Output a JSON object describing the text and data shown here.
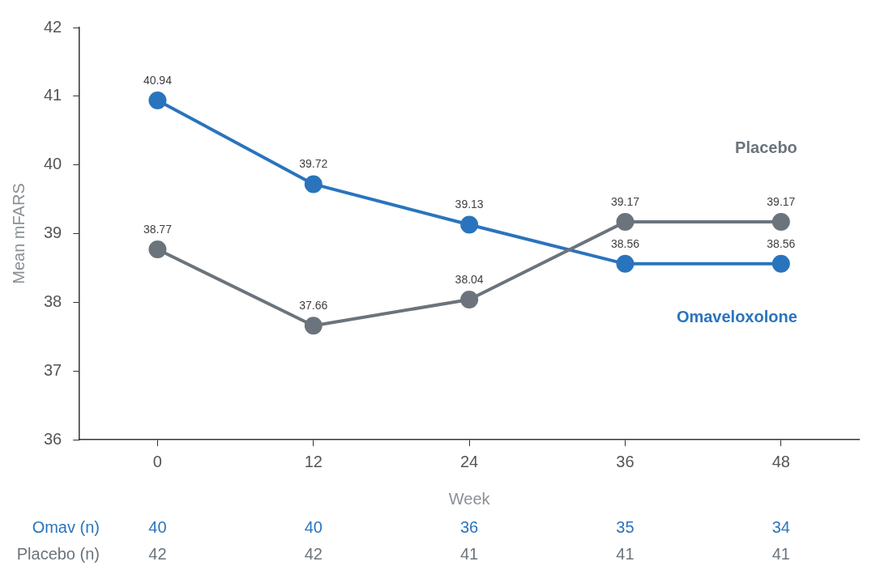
{
  "chart_data": {
    "type": "line",
    "xlabel": "Week",
    "ylabel": "Mean mFARS",
    "categories": [
      "0",
      "12",
      "24",
      "36",
      "48"
    ],
    "series": [
      {
        "name": "Placebo",
        "color": "#6b747c",
        "values": [
          38.77,
          37.66,
          38.04,
          39.17,
          39.17
        ]
      },
      {
        "name": "Omaveloxolone",
        "color": "#2a74bd",
        "values": [
          40.94,
          39.72,
          39.13,
          38.56,
          38.56
        ]
      }
    ],
    "ylim": [
      36,
      42
    ],
    "yticks": [
      36,
      37,
      38,
      39,
      40,
      41,
      42
    ],
    "grid": false,
    "legend": false,
    "marker": "circle",
    "line_style": "solid",
    "data_labels": true,
    "annotations": [
      "Omav (n)",
      "40",
      "40",
      "36",
      "35",
      "34",
      "Placebo (n)",
      "42",
      "42",
      "41",
      "41",
      "41"
    ]
  }
}
